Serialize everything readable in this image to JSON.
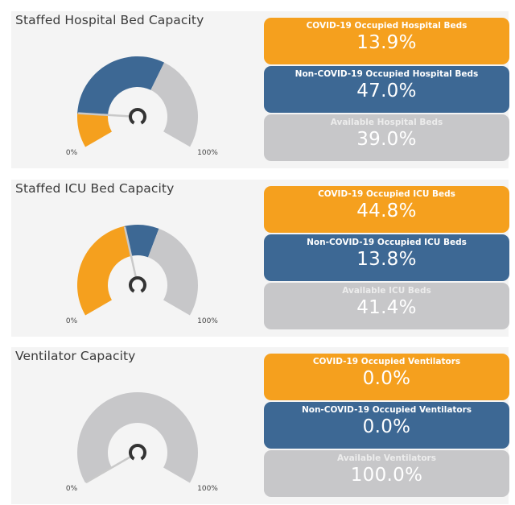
{
  "colors": {
    "covid": "#f5a01e",
    "noncovid": "#3d6894",
    "available": "#c7c7c9",
    "needle": "#c9c9c9",
    "hub": "#333333"
  },
  "gauge_min_label": "0%",
  "gauge_max_label": "100%",
  "chart_data": [
    {
      "type": "gauge",
      "title": "Staffed Hospital Bed Capacity",
      "range": [
        0,
        100
      ],
      "min_label": "0%",
      "max_label": "100%",
      "segments": [
        {
          "name": "COVID-19 Occupied Hospital Beds",
          "value": 13.9,
          "display": "13.9%"
        },
        {
          "name": "Non-COVID-19 Occupied Hospital Beds",
          "value": 47.0,
          "display": "47.0%"
        },
        {
          "name": "Available Hospital Beds",
          "value": 39.0,
          "display": "39.0%"
        }
      ],
      "needle_value": 13.9
    },
    {
      "type": "gauge",
      "title": "Staffed ICU Bed Capacity",
      "range": [
        0,
        100
      ],
      "min_label": "0%",
      "max_label": "100%",
      "segments": [
        {
          "name": "COVID-19 Occupied ICU Beds",
          "value": 44.8,
          "display": "44.8%"
        },
        {
          "name": "Non-COVID-19 Occupied ICU Beds",
          "value": 13.8,
          "display": "13.8%"
        },
        {
          "name": "Available ICU Beds",
          "value": 41.4,
          "display": "41.4%"
        }
      ],
      "needle_value": 44.8
    },
    {
      "type": "gauge",
      "title": "Ventilator Capacity",
      "range": [
        0,
        100
      ],
      "min_label": "0%",
      "max_label": "100%",
      "segments": [
        {
          "name": "COVID-19 Occupied Ventilators",
          "value": 0.0,
          "display": "0.0%"
        },
        {
          "name": "Non-COVID-19 Occupied Ventilators",
          "value": 0.0,
          "display": "0.0%"
        },
        {
          "name": "Available Ventilators",
          "value": 100.0,
          "display": "100.0%"
        }
      ],
      "needle_value": 0.0
    }
  ]
}
